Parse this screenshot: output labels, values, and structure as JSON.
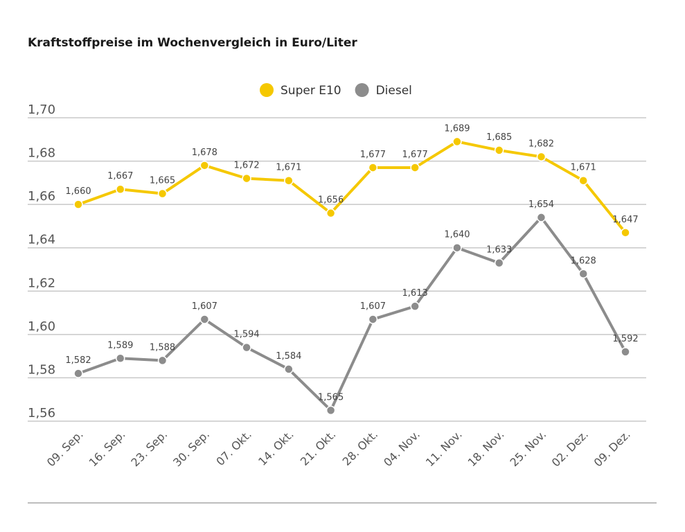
{
  "chart_data": {
    "type": "line",
    "title": "Kraftstoffpreise im Wochenvergleich in Euro/Liter",
    "xlabel": "",
    "ylabel": "",
    "categories": [
      "09. Sep.",
      "16. Sep.",
      "23. Sep.",
      "30. Sep.",
      "07. Okt.",
      "14. Okt.",
      "21. Okt.",
      "28. Okt.",
      "04. Nov.",
      "11. Nov.",
      "18. Nov.",
      "25. Nov.",
      "02. Dez.",
      "09. Dez."
    ],
    "series": [
      {
        "name": "Super E10",
        "color": "#f5c800",
        "values": [
          1.66,
          1.667,
          1.665,
          1.678,
          1.672,
          1.671,
          1.656,
          1.677,
          1.677,
          1.689,
          1.685,
          1.682,
          1.671,
          1.647
        ],
        "labels": [
          "1,660",
          "1,667",
          "1,665",
          "1,678",
          "1,672",
          "1,671",
          "1,656",
          "1,677",
          "1,677",
          "1,689",
          "1,685",
          "1,682",
          "1,671",
          "1,647"
        ]
      },
      {
        "name": "Diesel",
        "color": "#8c8c8c",
        "values": [
          1.582,
          1.589,
          1.588,
          1.607,
          1.594,
          1.584,
          1.565,
          1.607,
          1.613,
          1.64,
          1.633,
          1.654,
          1.628,
          1.592
        ],
        "labels": [
          "1,582",
          "1,589",
          "1,588",
          "1,607",
          "1,594",
          "1,584",
          "1,565",
          "1,607",
          "1,613",
          "1,640",
          "1,633",
          "1,654",
          "1,628",
          "1,592"
        ]
      }
    ],
    "ylim": [
      1.56,
      1.7
    ],
    "yticks": [
      1.7,
      1.68,
      1.66,
      1.64,
      1.62,
      1.6,
      1.58,
      1.56
    ],
    "ytick_labels": [
      "1,70",
      "1,68",
      "1,66",
      "1,64",
      "1,62",
      "1,60",
      "1,58",
      "1,56"
    ],
    "grid": true,
    "legend_position": "top-center"
  }
}
